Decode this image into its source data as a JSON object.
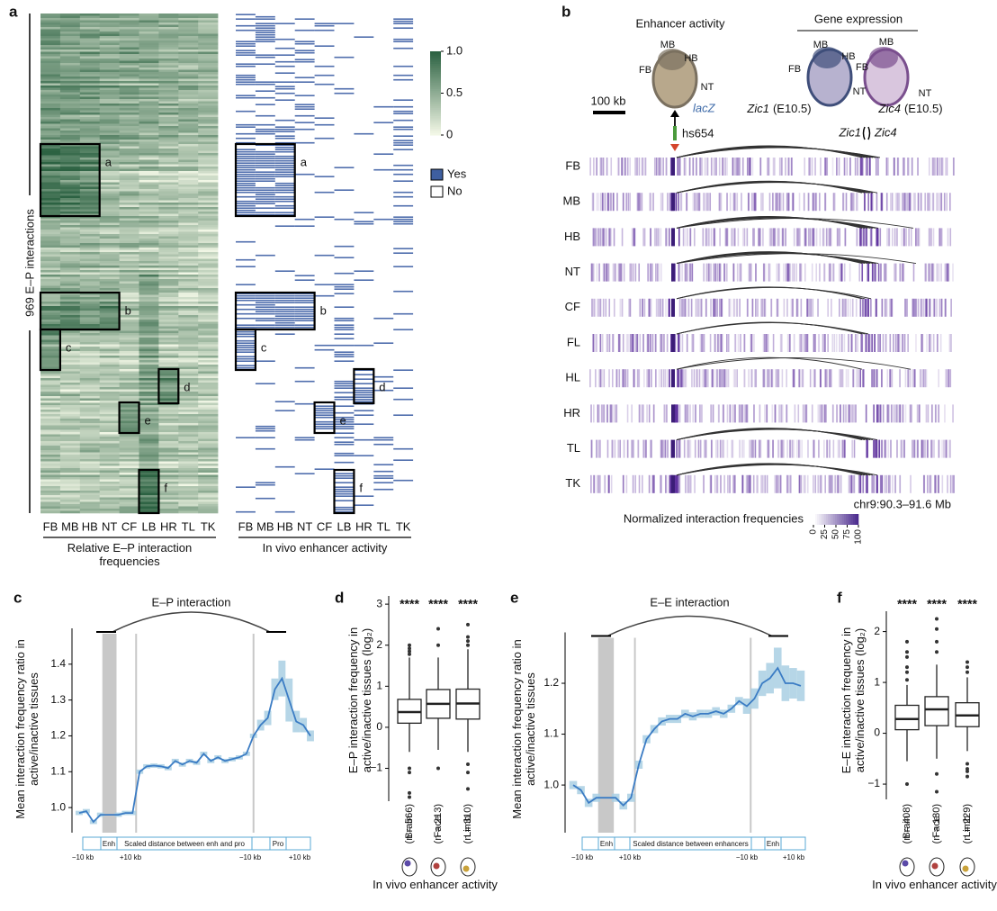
{
  "panel_a": {
    "label": "a",
    "y_label": "969 E–P interactions",
    "tissues": [
      "FB",
      "MB",
      "HB",
      "NT",
      "CF",
      "LB",
      "HR",
      "TL",
      "TK"
    ],
    "left_title": "Relative E–P interaction frequencies",
    "right_title": "In vivo enhancer activity",
    "boxes": [
      "a",
      "b",
      "c",
      "d",
      "e",
      "f"
    ],
    "colorbar_lim": [
      0,
      1
    ],
    "colorbar_ticks": [
      {
        "value": 1,
        "label": "1.0"
      },
      0.5,
      0
    ],
    "legend": [
      "Yes",
      "No"
    ]
  },
  "panel_b": {
    "label": "b",
    "enhancer_title": "Enhancer activity",
    "expression_title": "Gene expression",
    "embryo_labels": [
      [
        "MB",
        "HB",
        "FB",
        "NT"
      ],
      [
        "MB",
        "HB",
        "FB",
        "NT"
      ],
      [
        "MB",
        "FB",
        "NT"
      ]
    ],
    "reporter": "lacZ",
    "scale_bar": "100 kb",
    "enhancer": "hs654",
    "expression": [
      {
        "gene": "Zic1",
        "stage": "(E10.5)"
      },
      {
        "gene": "Zic4",
        "stage": "(E10.5)"
      }
    ],
    "genes": [
      "Zic1",
      "Zic4"
    ],
    "tissues": [
      "FB",
      "MB",
      "HB",
      "NT",
      "CF",
      "FL",
      "HL",
      "HR",
      "TL",
      "TK"
    ],
    "region": "chr9:90.3–91.6 Mb",
    "colorbar_title": "Normalized interaction frequencies",
    "colorbar_lim": [
      0,
      100
    ],
    "colorbar_ticks": [
      0,
      25,
      50,
      75,
      100
    ]
  },
  "chart_data": [
    {
      "type": "line",
      "label": "c",
      "title": "E–P interaction",
      "y_label": "Mean interaction frequency ratio in active/inactive tissues",
      "color": "#3b7cc4",
      "values": [
        0.985,
        0.99,
        0.96,
        0.98,
        0.98,
        0.985,
        0.985,
        1.1,
        1.115,
        1.117,
        1.115,
        1.11,
        1.13,
        1.12,
        1.13,
        1.125,
        1.15,
        1.13,
        1.14,
        1.13,
        1.135,
        1.14,
        1.15,
        1.2,
        1.23,
        1.25,
        1.33,
        1.36,
        1.3,
        1.24,
        1.23,
        1.2
      ],
      "ci": [
        0.006,
        0.006,
        0.006,
        0.006,
        0.006,
        0.006,
        0.006,
        0.006,
        0.006,
        0.006,
        0.006,
        0.006,
        0.006,
        0.006,
        0.006,
        0.006,
        0.006,
        0.006,
        0.006,
        0.006,
        0.006,
        0.006,
        0.006,
        0.006,
        0.015,
        0.02,
        0.03,
        0.05,
        0.06,
        0.03,
        0.02,
        0.015
      ],
      "ylim": [
        0.95,
        1.5
      ],
      "yticks": [
        {
          "value": 1,
          "label": "1.0"
        },
        1.1,
        1.2,
        1.3,
        1.4
      ],
      "schematic": [
        "Enh",
        "Scaled distance between enh and pro",
        "Pro"
      ],
      "schematic_ticks": [
        "−10 kb",
        "+10 kb",
        "−10 kb",
        "+10 kb"
      ]
    },
    {
      "type": "box",
      "label": "d",
      "y_label": "E–P interaction frequency in active/inactive tissues (log₂)",
      "x_label": "In vivo enhancer activity",
      "categories": [
        "Brain (n = 566)",
        "Face (n = 213)",
        "Limb (n = 310)"
      ],
      "significance": [
        "****",
        "****",
        "****"
      ],
      "boxes": [
        {
          "whislo": -0.6,
          "q1": 0.1,
          "med": 0.37,
          "q3": 0.68,
          "whishi": 1.7,
          "fliers": [
            1.78,
            1.85,
            1.92,
            2.0,
            -1.0,
            -1.1,
            -1.6,
            -1.7
          ]
        },
        {
          "whislo": -0.55,
          "q1": 0.22,
          "med": 0.57,
          "q3": 0.92,
          "whishi": 1.7,
          "fliers": [
            2.0,
            2.4,
            -1.0
          ]
        },
        {
          "whislo": -0.6,
          "q1": 0.2,
          "med": 0.58,
          "q3": 0.93,
          "whishi": 1.9,
          "fliers": [
            2.0,
            2.1,
            2.2,
            2.5,
            -0.9,
            -1.1,
            -1.5
          ]
        }
      ],
      "ylim": [
        -1.8,
        3.2
      ],
      "yticks": [
        {
          "value": -1,
          "label": "−1"
        },
        0,
        1,
        2,
        3
      ]
    },
    {
      "type": "line",
      "label": "e",
      "title": "E–E interaction",
      "y_label": "Mean interaction frequency ratio in active/inactive tissues",
      "color": "#3b7cc4",
      "values": [
        1.0,
        0.99,
        0.965,
        0.975,
        0.975,
        0.96,
        0.975,
        1.04,
        1.09,
        1.11,
        1.125,
        1.13,
        1.13,
        1.14,
        1.135,
        1.14,
        1.14,
        1.145,
        1.14,
        1.15,
        1.165,
        1.155,
        1.17,
        1.2,
        1.21,
        1.23,
        1.2,
        1.2,
        1.195
      ],
      "ci": [
        0.008,
        0.008,
        0.008,
        0.008,
        0.008,
        0.008,
        0.008,
        0.008,
        0.008,
        0.008,
        0.008,
        0.008,
        0.008,
        0.008,
        0.008,
        0.008,
        0.008,
        0.008,
        0.008,
        0.008,
        0.008,
        0.015,
        0.02,
        0.025,
        0.03,
        0.04,
        0.035,
        0.03,
        0.03
      ],
      "ylim": [
        0.94,
        1.3
      ],
      "yticks": [
        {
          "value": 1,
          "label": "1.0"
        },
        1.1,
        1.2
      ],
      "schematic": [
        "Enh",
        "Scaled distance between enhancers",
        "Enh"
      ],
      "schematic_ticks": [
        "−10 kb",
        "+10 kb",
        "−10 kb",
        "+10 kb"
      ]
    },
    {
      "type": "box",
      "label": "f",
      "y_label": "E–E interaction frequency in active/inactive tissues (log₂)",
      "x_label": "In vivo enhancer activity",
      "categories": [
        "Brain (n = 408)",
        "Face (n = 130)",
        "Limb (n = 229)"
      ],
      "significance": [
        "****",
        "****",
        "****"
      ],
      "boxes": [
        {
          "whislo": -0.55,
          "q1": 0.07,
          "med": 0.28,
          "q3": 0.55,
          "whishi": 0.95,
          "fliers": [
            1.05,
            1.2,
            1.3,
            1.5,
            1.6,
            1.8,
            -1.0
          ]
        },
        {
          "whislo": -0.5,
          "q1": 0.15,
          "med": 0.47,
          "q3": 0.72,
          "whishi": 1.35,
          "fliers": [
            1.6,
            1.8,
            2.05,
            2.25,
            -0.8,
            -1.15
          ]
        },
        {
          "whislo": -0.35,
          "q1": 0.13,
          "med": 0.35,
          "q3": 0.6,
          "whishi": 1.1,
          "fliers": [
            1.2,
            1.3,
            1.4,
            -0.6,
            -0.7,
            -0.75,
            -0.85
          ]
        }
      ],
      "ylim": [
        -1.3,
        2.4
      ],
      "yticks": [
        {
          "value": -1,
          "label": "−1"
        },
        0,
        1,
        2
      ]
    }
  ]
}
